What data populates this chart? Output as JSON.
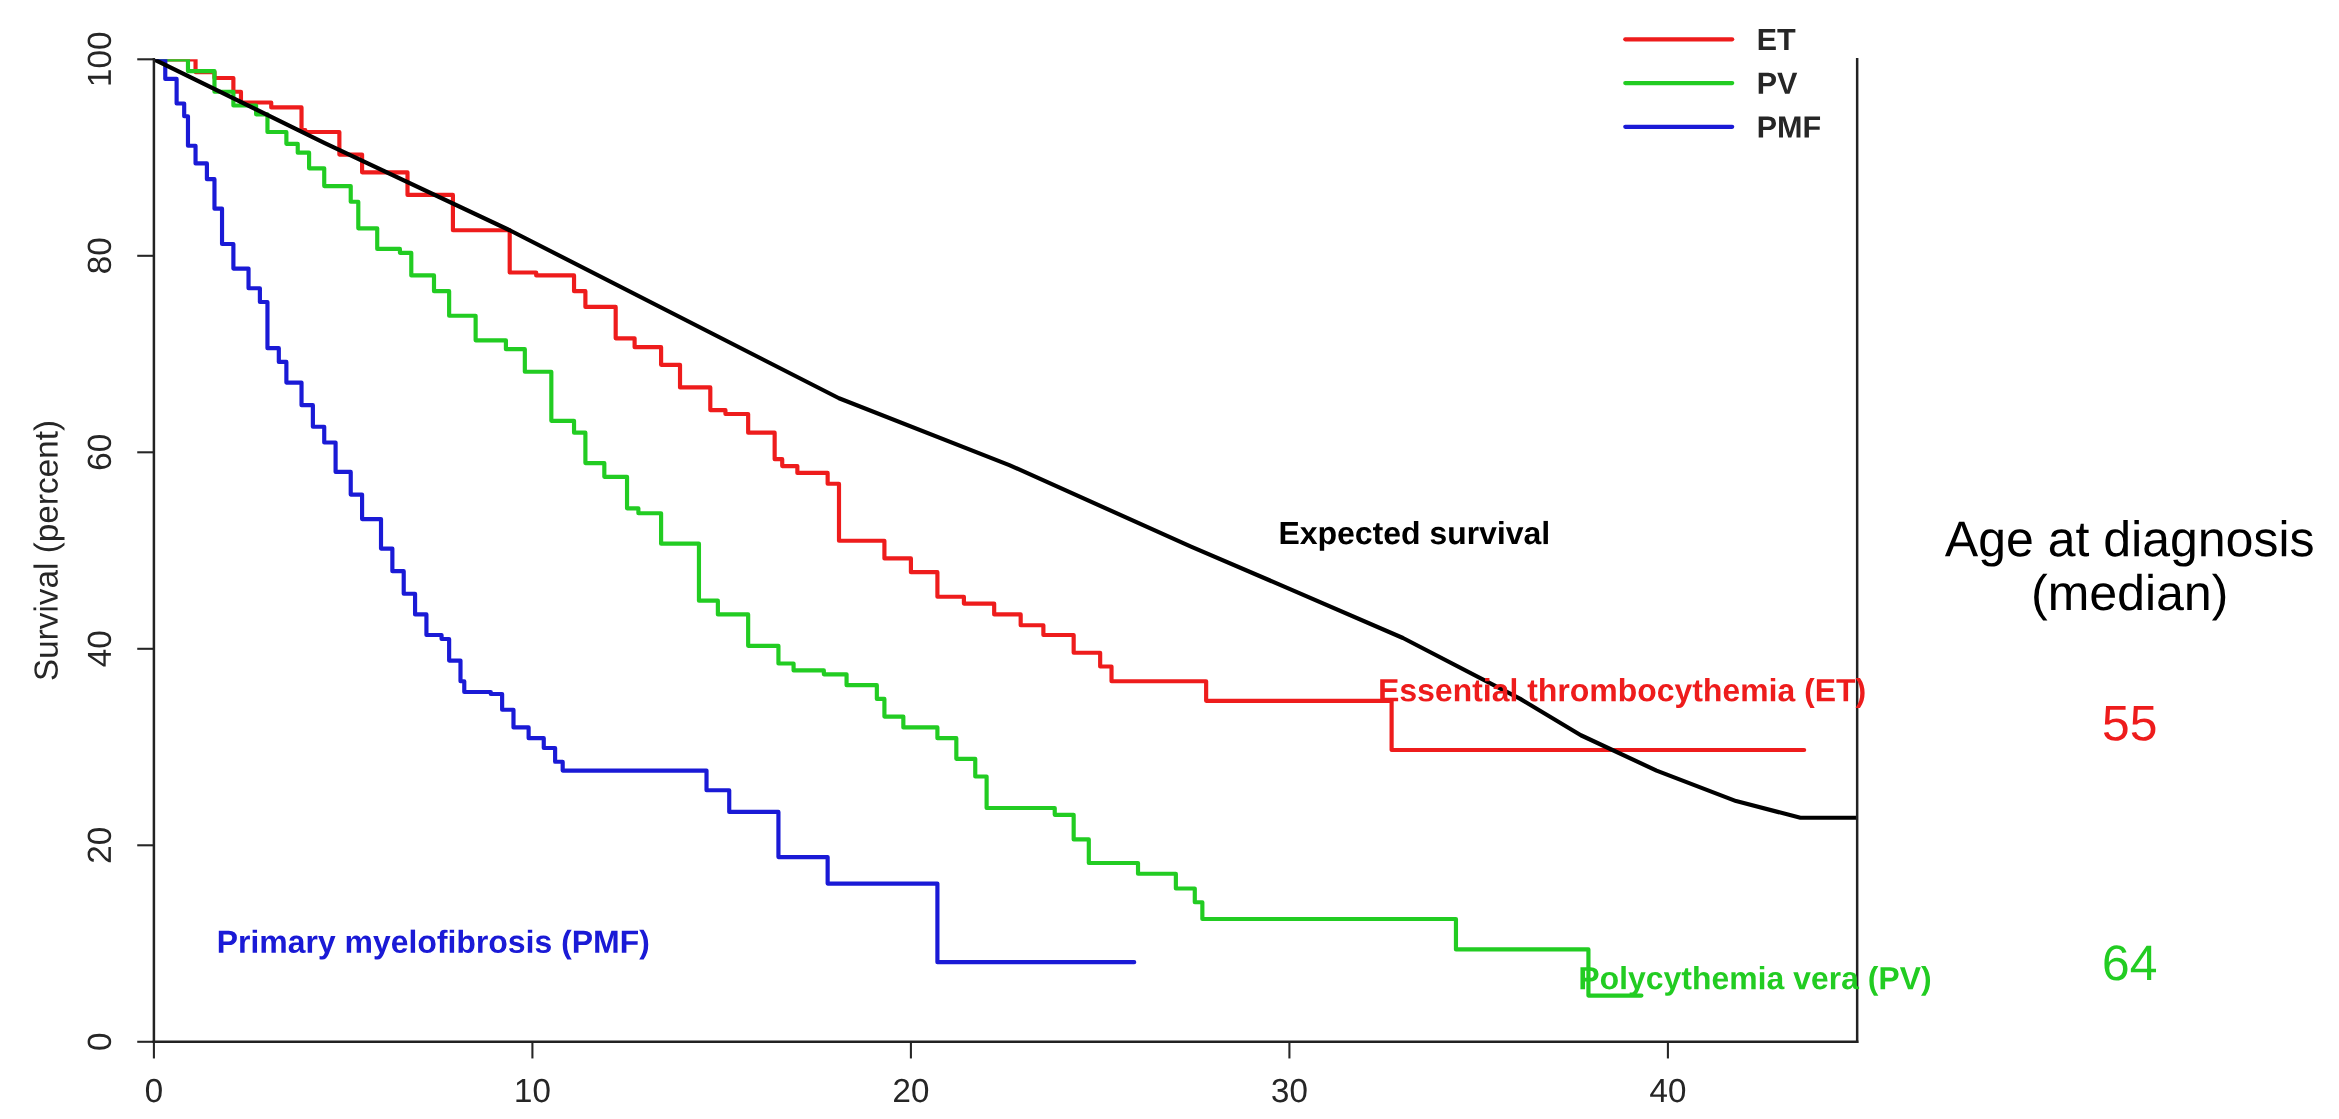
{
  "chart_data": {
    "type": "step",
    "ylabel": "Survival (percent)",
    "xlim": [
      0,
      45
    ],
    "ylim": [
      0,
      100
    ],
    "xticks": [
      0,
      10,
      20,
      30,
      40
    ],
    "yticks": [
      0,
      20,
      40,
      60,
      80,
      100
    ],
    "grid": false,
    "legend": "top right",
    "line_style": "solid",
    "marker": "none",
    "series": [
      {
        "name": "ET",
        "color": "#ee1c1c",
        "x": [
          0,
          1.1,
          1.6,
          2.1,
          2.3,
          3.1,
          3.9,
          4.0,
          4.9,
          5.5,
          6.7,
          7.9,
          9.4,
          10.1,
          11.1,
          11.4,
          12.2,
          12.7,
          13.4,
          13.9,
          14.7,
          15.1,
          15.7,
          16.4,
          16.6,
          17.0,
          17.8,
          18.1,
          19.3,
          20.0,
          20.7,
          21.4,
          22.2,
          22.9,
          23.5,
          24.3,
          25.0,
          25.3,
          26.6,
          27.8,
          32.7,
          43.6
        ],
        "values": [
          100,
          98.7,
          98.1,
          96.7,
          95.6,
          95.1,
          92.8,
          92.6,
          90.3,
          88.5,
          86.2,
          82.6,
          78.3,
          78.0,
          76.4,
          74.8,
          71.6,
          70.7,
          68.9,
          66.6,
          64.3,
          63.9,
          62.0,
          59.3,
          58.6,
          57.9,
          56.8,
          51.0,
          49.2,
          47.8,
          45.3,
          44.6,
          43.5,
          42.4,
          41.4,
          39.6,
          38.2,
          36.7,
          36.7,
          34.7,
          29.7,
          29.7
        ]
      },
      {
        "name": "PV",
        "color": "#22cc22",
        "x": [
          0,
          0.9,
          1.6,
          2.1,
          2.7,
          3.0,
          3.5,
          3.8,
          4.1,
          4.5,
          5.2,
          5.4,
          5.9,
          6.5,
          6.8,
          7.4,
          7.8,
          8.5,
          9.3,
          9.8,
          10.5,
          11.1,
          11.4,
          11.9,
          12.5,
          12.8,
          13.4,
          14.4,
          14.9,
          15.7,
          16.5,
          16.9,
          17.7,
          18.3,
          19.1,
          19.3,
          19.8,
          20.7,
          21.2,
          21.7,
          22.0,
          23.8,
          24.3,
          24.7,
          26.0,
          27.0,
          27.5,
          27.7,
          34.4,
          37.9,
          39.3
        ],
        "values": [
          100,
          98.8,
          96.7,
          95.3,
          94.4,
          92.6,
          91.4,
          90.5,
          88.9,
          87.1,
          85.5,
          82.8,
          80.7,
          80.3,
          78.0,
          76.4,
          73.9,
          71.4,
          70.5,
          68.2,
          63.2,
          62.0,
          58.9,
          57.5,
          54.3,
          53.8,
          50.7,
          44.9,
          43.5,
          40.3,
          38.5,
          37.8,
          37.4,
          36.3,
          34.9,
          33.1,
          32.0,
          30.9,
          28.8,
          27.0,
          23.8,
          23.1,
          20.6,
          18.2,
          17.1,
          15.6,
          14.2,
          12.5,
          9.4,
          4.7,
          4.7
        ]
      },
      {
        "name": "PMF",
        "color": "#1a1ad6",
        "x": [
          0,
          0.3,
          0.6,
          0.8,
          0.9,
          1.1,
          1.4,
          1.6,
          1.8,
          2.1,
          2.5,
          2.8,
          3.0,
          3.3,
          3.5,
          3.9,
          4.2,
          4.5,
          4.8,
          5.2,
          5.5,
          6.0,
          6.3,
          6.6,
          6.9,
          7.2,
          7.6,
          7.8,
          8.1,
          8.2,
          8.9,
          9.2,
          9.5,
          9.9,
          10.3,
          10.6,
          10.8,
          14.6,
          15.2,
          16.5,
          17.8,
          20.7,
          25.9
        ],
        "values": [
          100,
          98.0,
          95.5,
          94.2,
          91.2,
          89.4,
          87.8,
          84.8,
          81.2,
          78.7,
          76.7,
          75.3,
          70.6,
          69.2,
          67.1,
          64.8,
          62.6,
          61.0,
          58.0,
          55.7,
          53.2,
          50.2,
          47.9,
          45.6,
          43.5,
          41.4,
          41.0,
          38.8,
          36.7,
          35.6,
          35.4,
          33.8,
          32.0,
          30.9,
          29.9,
          28.5,
          27.6,
          25.6,
          23.4,
          18.8,
          16.1,
          8.1,
          8.1
        ]
      },
      {
        "type": "line",
        "color": "#000000",
        "x": [
          0,
          4.5,
          9.4,
          18.1,
          22.6,
          27.4,
          30.0,
          33.0,
          36.1,
          37.7,
          39.7,
          41.8,
          43.5,
          45.0
        ],
        "values": [
          100,
          91.5,
          82.6,
          65.5,
          58.7,
          50.4,
          46.1,
          41.1,
          34.9,
          31.2,
          27.6,
          24.5,
          22.8,
          22.8
        ]
      }
    ],
    "annotations": [
      "Expected survival",
      "Essential thrombocythemia (ET)",
      "Polycythemia vera (PV)",
      "Primary myelofibrosis (PMF)",
      "Age at diagnosis\n(median)",
      "55",
      "64"
    ]
  }
}
